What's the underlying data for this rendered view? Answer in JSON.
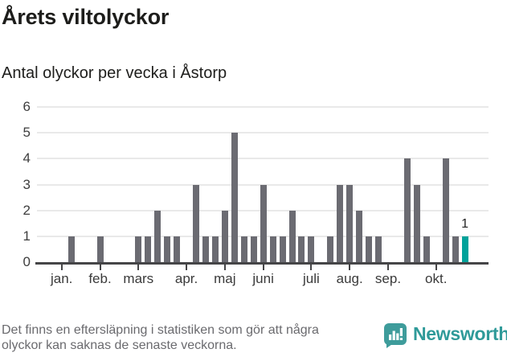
{
  "title": "Årets viltolyckor",
  "subtitle": "Antal olyckor per vecka i Åstorp",
  "footer": {
    "line1": "Det finns en eftersläpning i statistiken som gör att några",
    "line2": "olyckor kan saknas de senaste veckorna."
  },
  "brand": {
    "name": "Newsworthy",
    "icon": "newsworthy-speech-bubble-bars-icon",
    "wordmark_color": "#2f9a99",
    "icon_color": "#3e9c9b"
  },
  "colors": {
    "bar": "#6b6b72",
    "highlight": "#00a29a",
    "grid": "#e9e9e9",
    "axis": "#454547",
    "title_text": "#1d1d1b",
    "muted_text": "#6a6a6e"
  },
  "chart_data": {
    "type": "bar",
    "title": "Årets viltolyckor",
    "subtitle": "Antal olyckor per vecka i Åstorp",
    "x_unit": "vecka (week of year)",
    "weeks": [
      1,
      2,
      3,
      4,
      5,
      6,
      7,
      8,
      9,
      10,
      11,
      12,
      13,
      14,
      15,
      16,
      17,
      18,
      19,
      20,
      21,
      22,
      23,
      24,
      25,
      26,
      27,
      28,
      29,
      30,
      31,
      32,
      33,
      34,
      35,
      36,
      37,
      38,
      39,
      40,
      41,
      42,
      43,
      44
    ],
    "values": [
      0,
      0,
      1,
      0,
      0,
      1,
      0,
      0,
      0,
      1,
      1,
      2,
      1,
      1,
      0,
      3,
      1,
      1,
      2,
      5,
      1,
      1,
      3,
      1,
      1,
      2,
      1,
      1,
      0,
      1,
      3,
      3,
      2,
      1,
      1,
      0,
      0,
      4,
      3,
      1,
      0,
      4,
      1,
      1
    ],
    "highlight_last": true,
    "last_value_label": "1",
    "ylim": [
      0,
      6
    ],
    "yticks": [
      0,
      1,
      2,
      3,
      4,
      5,
      6
    ],
    "month_ticks": [
      {
        "week": 2,
        "label": "jan."
      },
      {
        "week": 6,
        "label": "feb."
      },
      {
        "week": 10,
        "label": "mars"
      },
      {
        "week": 15,
        "label": "apr."
      },
      {
        "week": 19,
        "label": "maj"
      },
      {
        "week": 23,
        "label": "juni"
      },
      {
        "week": 28,
        "label": "juli"
      },
      {
        "week": 32,
        "label": "aug."
      },
      {
        "week": 36,
        "label": "sep."
      },
      {
        "week": 41,
        "label": "okt."
      }
    ],
    "grid": "horizontal",
    "legend": "none",
    "bar_color": "#6b6b72",
    "highlight_color": "#00a29a"
  }
}
